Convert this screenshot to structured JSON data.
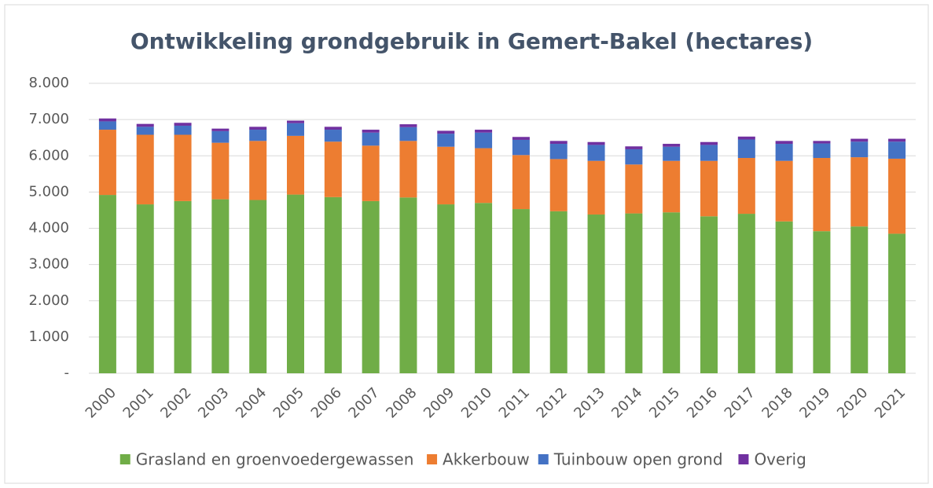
{
  "chart_data": {
    "type": "stacked_bar",
    "title": "Ontwikkeling grondgebruik in Gemert-Bakel (hectares)",
    "categories": [
      "2000",
      "2001",
      "2002",
      "2003",
      "2004",
      "2005",
      "2006",
      "2007",
      "2008",
      "2009",
      "2010",
      "2011",
      "2012",
      "2013",
      "2014",
      "2015",
      "2016",
      "2017",
      "2018",
      "2019",
      "2020",
      "2021"
    ],
    "series": [
      {
        "name": "Grasland en groenvoedergewassen",
        "color": "#70ad47",
        "values": [
          4920,
          4660,
          4750,
          4800,
          4780,
          4930,
          4860,
          4750,
          4850,
          4660,
          4700,
          4530,
          4470,
          4380,
          4410,
          4440,
          4330,
          4400,
          4190,
          3920,
          4050,
          3850
        ]
      },
      {
        "name": "Akkerbouw",
        "color": "#ed7d31",
        "values": [
          1800,
          1920,
          1830,
          1560,
          1630,
          1620,
          1530,
          1530,
          1560,
          1590,
          1510,
          1490,
          1440,
          1480,
          1350,
          1420,
          1530,
          1540,
          1670,
          2020,
          1910,
          2070
        ]
      },
      {
        "name": "Tuinbouw open grond",
        "color": "#4472c4",
        "values": [
          230,
          220,
          250,
          320,
          310,
          350,
          330,
          360,
          380,
          360,
          430,
          420,
          420,
          440,
          420,
          390,
          440,
          510,
          470,
          400,
          430,
          470
        ]
      },
      {
        "name": "Overig",
        "color": "#7030a0",
        "values": [
          80,
          80,
          80,
          70,
          80,
          70,
          80,
          80,
          80,
          80,
          80,
          80,
          80,
          80,
          80,
          80,
          80,
          80,
          80,
          70,
          80,
          80
        ]
      }
    ],
    "ylim": [
      0,
      8000
    ],
    "yticks": [
      {
        "value": 0,
        "label": "-"
      },
      {
        "value": 1000,
        "label": "1.000"
      },
      {
        "value": 2000,
        "label": "2.000"
      },
      {
        "value": 3000,
        "label": "3.000"
      },
      {
        "value": 4000,
        "label": "4.000"
      },
      {
        "value": 5000,
        "label": "5.000"
      },
      {
        "value": 6000,
        "label": "6.000"
      },
      {
        "value": 7000,
        "label": "7.000"
      },
      {
        "value": 8000,
        "label": "8.000"
      }
    ],
    "grid": true,
    "legend": "bottom"
  }
}
